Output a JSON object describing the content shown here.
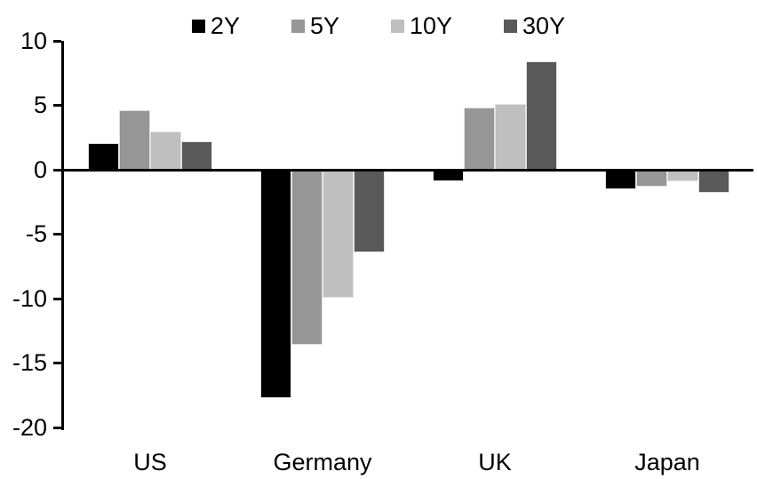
{
  "chart_data": {
    "type": "bar",
    "title": "",
    "categories": [
      "US",
      "Germany",
      "UK",
      "Japan"
    ],
    "series": [
      {
        "name": "2Y",
        "color": "#000000",
        "values": [
          2.1,
          -17.7,
          -0.9,
          -1.5
        ]
      },
      {
        "name": "5Y",
        "color": "#969696",
        "values": [
          4.6,
          -13.6,
          4.8,
          -1.3
        ]
      },
      {
        "name": "10Y",
        "color": "#bfbfbf",
        "values": [
          3.0,
          -9.9,
          5.1,
          -0.9
        ]
      },
      {
        "name": "30Y",
        "color": "#595959",
        "values": [
          2.2,
          -6.4,
          8.4,
          -1.8
        ]
      }
    ],
    "ylim": [
      -20,
      10
    ],
    "yticks": [
      10,
      5,
      0,
      -5,
      -10,
      -15,
      -20
    ],
    "legend_position": "top",
    "grid": false,
    "axis_color": "#000000",
    "background": "#ffffff"
  }
}
